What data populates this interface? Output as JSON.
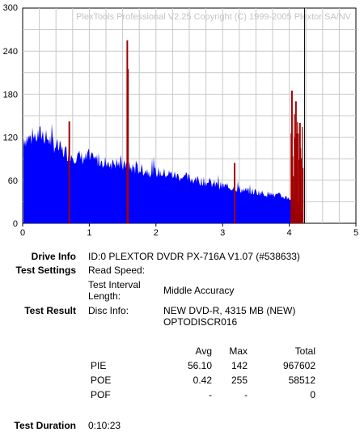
{
  "chart_data": {
    "type": "bar",
    "watermark": "PlexTools Professional V2.25 Copyright (C) 1999-2005 Plextor SA/NV",
    "xlim": [
      0,
      5
    ],
    "ylim": [
      0,
      300
    ],
    "x_ticks": [
      "0",
      "1",
      "2",
      "3",
      "4",
      "5"
    ],
    "y_ticks": [
      "0",
      "60",
      "120",
      "180",
      "240",
      "300"
    ],
    "grid": true,
    "series": [
      {
        "color": "#0000ff",
        "x": [
          0.0,
          0.1,
          0.2,
          0.3,
          0.4,
          0.5,
          0.6,
          0.7,
          0.8,
          0.9,
          1.0,
          1.1,
          1.2,
          1.3,
          1.4,
          1.5,
          1.6,
          1.7,
          1.8,
          1.9,
          2.0,
          2.1,
          2.2,
          2.3,
          2.4,
          2.5,
          2.6,
          2.7,
          2.8,
          2.9,
          3.0,
          3.1,
          3.2,
          3.3,
          3.4,
          3.5,
          3.6,
          3.7,
          3.8,
          3.9,
          4.0,
          4.1,
          4.2
        ],
        "values": [
          128,
          127,
          130,
          134,
          125,
          116,
          108,
          104,
          100,
          98,
          96,
          95,
          93,
          91,
          90,
          86,
          84,
          82,
          80,
          78,
          77,
          75,
          74,
          71,
          69,
          67,
          65,
          63,
          60,
          58,
          56,
          54,
          52,
          50,
          48,
          47,
          45,
          43,
          42,
          40,
          38,
          32,
          14
        ]
      },
      {
        "color": "#a00000",
        "spikes": [
          {
            "x": 0.7,
            "value": 142
          },
          {
            "x": 1.57,
            "value": 255
          },
          {
            "x": 1.58,
            "value": 215
          },
          {
            "x": 3.18,
            "value": 84
          },
          {
            "x": 4.04,
            "value": 185
          },
          {
            "x": 4.1,
            "value": 170
          },
          {
            "x": 4.16,
            "value": 140
          }
        ]
      }
    ],
    "marker": {
      "x": 4.23,
      "color": "#000000"
    }
  },
  "info": {
    "drive_info_label": "Drive Info",
    "drive_info_value": "ID:0 PLEXTOR DVDR PX-716A V1.07 (#538633)",
    "test_settings_label": "Test Settings",
    "read_speed_label": "Read Speed:",
    "interval_label_1": "Test Interval",
    "interval_label_2": "Length:",
    "interval_value": "Middle Accuracy",
    "test_result_label": "Test Result",
    "disc_info_label": "Disc Info:",
    "disc_info_value_1": "NEW DVD-R, 4315 MB (NEW)",
    "disc_info_value_2": "OPTODISCR016",
    "col_avg": "Avg",
    "col_max": "Max",
    "col_total": "Total",
    "rows": [
      {
        "name": "PIE",
        "avg": "56.10",
        "max": "142",
        "total": "967602"
      },
      {
        "name": "POE",
        "avg": "0.42",
        "max": "255",
        "total": "58512"
      },
      {
        "name": "POF",
        "avg": "-",
        "max": "-",
        "total": "0"
      }
    ],
    "duration_label": "Test Duration",
    "duration_value": "0:10:23"
  }
}
